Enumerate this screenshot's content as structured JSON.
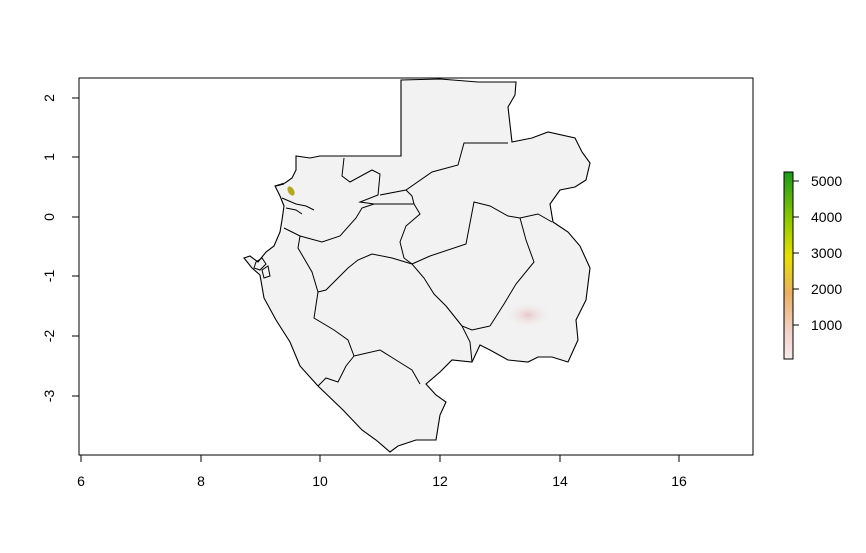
{
  "map": {
    "x_axis": {
      "ticks": [
        "6",
        "8",
        "10",
        "12",
        "14",
        "16"
      ]
    },
    "y_axis": {
      "ticks": [
        "2",
        "1",
        "0",
        "-1",
        "-2",
        "-3"
      ]
    },
    "legend": {
      "labels": [
        "5000",
        "4000",
        "3000",
        "2000",
        "1000"
      ],
      "colors": [
        "#1a9a1a",
        "#8cc800",
        "#e6e000",
        "#eab064",
        "#f2d2c8",
        "#f2f2f2"
      ]
    },
    "fill_color": "#f2f2f2",
    "border_color": "#000000",
    "hotspot_color": "#b8a820"
  }
}
